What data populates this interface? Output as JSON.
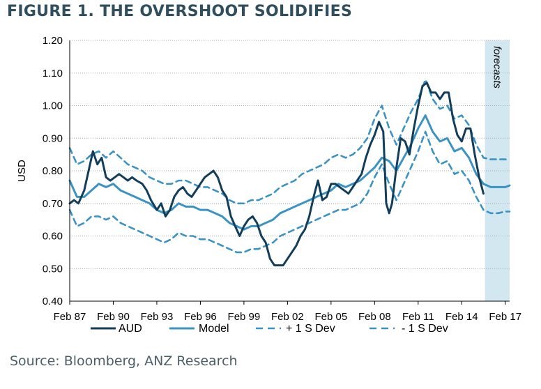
{
  "figure": {
    "title": "FIGURE 1. THE OVERSHOOT SOLIDIFIES",
    "source": "Source: Bloomberg, ANZ Research"
  },
  "colors": {
    "aud": "#123e5c",
    "model": "#3a93c4",
    "band": "#3a93c4",
    "forecast_shade": "#d3e7f1",
    "grid": "#9aaeb5"
  },
  "chart_data": {
    "type": "line",
    "title": "",
    "xlabel": "",
    "ylabel": "USD",
    "ylim": [
      0.4,
      1.2
    ],
    "yticks": [
      "0.40",
      "0.50",
      "0.60",
      "0.70",
      "0.80",
      "0.90",
      "1.00",
      "1.10",
      "1.20"
    ],
    "xlim": [
      1987,
      2017.3
    ],
    "xticks": [
      {
        "x": 1987,
        "label": "Feb 87"
      },
      {
        "x": 1990,
        "label": "Feb 90"
      },
      {
        "x": 1993,
        "label": "Feb 93"
      },
      {
        "x": 1996,
        "label": "Feb 96"
      },
      {
        "x": 1999,
        "label": "Feb 99"
      },
      {
        "x": 2002,
        "label": "Feb 02"
      },
      {
        "x": 2005,
        "label": "Feb 05"
      },
      {
        "x": 2008,
        "label": "Feb 08"
      },
      {
        "x": 2011,
        "label": "Feb 11"
      },
      {
        "x": 2014,
        "label": "Feb 14"
      },
      {
        "x": 2017,
        "label": "Feb 17"
      }
    ],
    "grid": true,
    "legend": "bottom",
    "forecast_region": {
      "x_start": 2015.6,
      "x_end": 2017.3,
      "label": "forecasts"
    },
    "series": [
      {
        "name": "AUD",
        "style": "solid-thick",
        "x": [
          1987.0,
          1987.3,
          1987.6,
          1988.0,
          1988.3,
          1988.6,
          1988.9,
          1989.2,
          1989.5,
          1989.8,
          1990.1,
          1990.4,
          1990.7,
          1991.0,
          1991.3,
          1991.6,
          1992.0,
          1992.3,
          1992.6,
          1993.0,
          1993.3,
          1993.6,
          1993.9,
          1994.2,
          1994.5,
          1994.8,
          1995.1,
          1995.4,
          1995.7,
          1996.0,
          1996.3,
          1996.6,
          1996.9,
          1997.2,
          1997.5,
          1997.8,
          1998.1,
          1998.4,
          1998.7,
          1999.0,
          1999.3,
          1999.6,
          1999.9,
          2000.2,
          2000.5,
          2000.8,
          2001.1,
          2001.4,
          2001.7,
          2002.0,
          2002.3,
          2002.6,
          2002.9,
          2003.2,
          2003.5,
          2003.8,
          2004.1,
          2004.4,
          2004.7,
          2005.0,
          2005.3,
          2005.6,
          2005.9,
          2006.2,
          2006.5,
          2006.8,
          2007.1,
          2007.4,
          2007.7,
          2008.0,
          2008.3,
          2008.6,
          2008.8,
          2009.0,
          2009.2,
          2009.5,
          2009.8,
          2010.1,
          2010.4,
          2010.7,
          2011.0,
          2011.3,
          2011.6,
          2011.9,
          2012.2,
          2012.5,
          2012.8,
          2013.1,
          2013.4,
          2013.7,
          2014.0,
          2014.3,
          2014.6,
          2014.9,
          2015.2,
          2015.5
        ],
        "values": [
          0.7,
          0.71,
          0.7,
          0.74,
          0.8,
          0.86,
          0.82,
          0.84,
          0.78,
          0.77,
          0.78,
          0.79,
          0.78,
          0.77,
          0.78,
          0.77,
          0.76,
          0.74,
          0.71,
          0.68,
          0.7,
          0.66,
          0.68,
          0.72,
          0.74,
          0.75,
          0.73,
          0.72,
          0.74,
          0.76,
          0.78,
          0.79,
          0.8,
          0.78,
          0.74,
          0.72,
          0.66,
          0.63,
          0.6,
          0.63,
          0.65,
          0.66,
          0.64,
          0.6,
          0.58,
          0.53,
          0.51,
          0.51,
          0.51,
          0.53,
          0.55,
          0.57,
          0.6,
          0.62,
          0.66,
          0.72,
          0.77,
          0.71,
          0.72,
          0.76,
          0.76,
          0.75,
          0.74,
          0.73,
          0.75,
          0.77,
          0.79,
          0.84,
          0.88,
          0.91,
          0.95,
          0.92,
          0.7,
          0.67,
          0.7,
          0.81,
          0.9,
          0.89,
          0.85,
          0.93,
          1.0,
          1.06,
          1.07,
          1.04,
          1.04,
          1.02,
          1.04,
          1.04,
          0.96,
          0.91,
          0.89,
          0.93,
          0.93,
          0.85,
          0.78,
          0.73
        ]
      },
      {
        "name": "Model",
        "style": "solid",
        "x": [
          1987.0,
          1987.5,
          1988.0,
          1988.5,
          1989.0,
          1989.5,
          1990.0,
          1990.5,
          1991.0,
          1991.5,
          1992.0,
          1992.5,
          1993.0,
          1993.5,
          1994.0,
          1994.5,
          1995.0,
          1995.5,
          1996.0,
          1996.5,
          1997.0,
          1997.5,
          1998.0,
          1998.5,
          1999.0,
          1999.5,
          2000.0,
          2000.5,
          2001.0,
          2001.5,
          2002.0,
          2002.5,
          2003.0,
          2003.5,
          2004.0,
          2004.5,
          2005.0,
          2005.5,
          2006.0,
          2006.5,
          2007.0,
          2007.5,
          2008.0,
          2008.5,
          2009.0,
          2009.5,
          2010.0,
          2010.5,
          2011.0,
          2011.5,
          2012.0,
          2012.5,
          2013.0,
          2013.5,
          2014.0,
          2014.5,
          2015.0,
          2015.5,
          2016.0,
          2016.5,
          2017.0,
          2017.3
        ],
        "values": [
          0.77,
          0.72,
          0.72,
          0.74,
          0.76,
          0.75,
          0.76,
          0.74,
          0.73,
          0.72,
          0.71,
          0.7,
          0.68,
          0.67,
          0.68,
          0.7,
          0.69,
          0.69,
          0.68,
          0.68,
          0.67,
          0.66,
          0.64,
          0.63,
          0.62,
          0.63,
          0.63,
          0.64,
          0.65,
          0.67,
          0.68,
          0.69,
          0.7,
          0.71,
          0.72,
          0.73,
          0.74,
          0.76,
          0.75,
          0.76,
          0.77,
          0.79,
          0.81,
          0.84,
          0.83,
          0.8,
          0.84,
          0.88,
          0.93,
          0.97,
          0.92,
          0.89,
          0.9,
          0.86,
          0.87,
          0.84,
          0.79,
          0.76,
          0.75,
          0.75,
          0.75,
          0.755
        ]
      },
      {
        "name": "+ 1 S Dev",
        "style": "dashed",
        "x": [
          1987.0,
          1987.5,
          1988.0,
          1988.5,
          1989.0,
          1989.5,
          1990.0,
          1990.5,
          1991.0,
          1991.5,
          1992.0,
          1992.5,
          1993.0,
          1993.5,
          1994.0,
          1994.5,
          1995.0,
          1995.5,
          1996.0,
          1996.5,
          1997.0,
          1997.5,
          1998.0,
          1998.5,
          1999.0,
          1999.5,
          2000.0,
          2000.5,
          2001.0,
          2001.5,
          2002.0,
          2002.5,
          2003.0,
          2003.5,
          2004.0,
          2004.5,
          2005.0,
          2005.5,
          2006.0,
          2006.5,
          2007.0,
          2007.5,
          2008.0,
          2008.5,
          2009.0,
          2009.5,
          2010.0,
          2010.5,
          2011.0,
          2011.5,
          2012.0,
          2012.5,
          2013.0,
          2013.5,
          2014.0,
          2014.5,
          2015.0,
          2015.5,
          2016.0,
          2016.5,
          2017.0,
          2017.3
        ],
        "values": [
          0.87,
          0.82,
          0.83,
          0.85,
          0.86,
          0.84,
          0.86,
          0.84,
          0.82,
          0.81,
          0.8,
          0.78,
          0.77,
          0.76,
          0.76,
          0.77,
          0.77,
          0.76,
          0.75,
          0.75,
          0.74,
          0.73,
          0.71,
          0.7,
          0.7,
          0.71,
          0.71,
          0.72,
          0.73,
          0.75,
          0.76,
          0.77,
          0.79,
          0.8,
          0.81,
          0.82,
          0.84,
          0.85,
          0.84,
          0.85,
          0.87,
          0.9,
          0.96,
          1.0,
          0.93,
          0.88,
          0.93,
          0.98,
          1.02,
          1.08,
          1.02,
          0.99,
          1.0,
          0.96,
          0.97,
          0.94,
          0.88,
          0.84,
          0.835,
          0.835,
          0.835,
          0.835
        ]
      },
      {
        "name": "- 1 S Dev",
        "style": "dashed",
        "x": [
          1987.0,
          1987.5,
          1988.0,
          1988.5,
          1989.0,
          1989.5,
          1990.0,
          1990.5,
          1991.0,
          1991.5,
          1992.0,
          1992.5,
          1993.0,
          1993.5,
          1994.0,
          1994.5,
          1995.0,
          1995.5,
          1996.0,
          1996.5,
          1997.0,
          1997.5,
          1998.0,
          1998.5,
          1999.0,
          1999.5,
          2000.0,
          2000.5,
          2001.0,
          2001.5,
          2002.0,
          2002.5,
          2003.0,
          2003.5,
          2004.0,
          2004.5,
          2005.0,
          2005.5,
          2006.0,
          2006.5,
          2007.0,
          2007.5,
          2008.0,
          2008.5,
          2009.0,
          2009.5,
          2010.0,
          2010.5,
          2011.0,
          2011.5,
          2012.0,
          2012.5,
          2013.0,
          2013.5,
          2014.0,
          2014.5,
          2015.0,
          2015.5,
          2016.0,
          2016.5,
          2017.0,
          2017.3
        ],
        "values": [
          0.68,
          0.63,
          0.64,
          0.66,
          0.66,
          0.65,
          0.66,
          0.64,
          0.63,
          0.62,
          0.61,
          0.6,
          0.59,
          0.58,
          0.59,
          0.61,
          0.6,
          0.6,
          0.59,
          0.59,
          0.58,
          0.57,
          0.56,
          0.55,
          0.55,
          0.56,
          0.56,
          0.57,
          0.58,
          0.6,
          0.61,
          0.62,
          0.63,
          0.64,
          0.65,
          0.66,
          0.67,
          0.68,
          0.68,
          0.69,
          0.7,
          0.73,
          0.78,
          0.82,
          0.76,
          0.71,
          0.76,
          0.81,
          0.86,
          0.92,
          0.86,
          0.82,
          0.83,
          0.79,
          0.8,
          0.77,
          0.72,
          0.68,
          0.67,
          0.67,
          0.675,
          0.675
        ]
      }
    ]
  }
}
